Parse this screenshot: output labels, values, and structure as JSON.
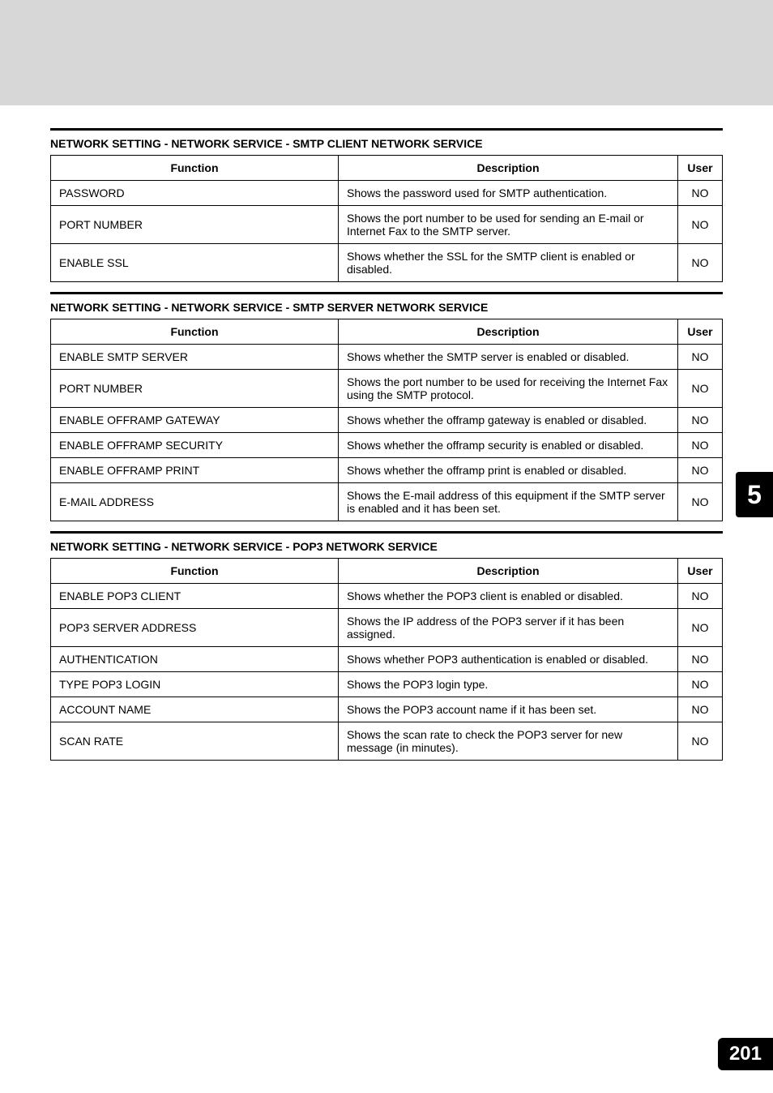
{
  "page": {
    "side_tab": "5",
    "page_number": "201"
  },
  "sections": [
    {
      "heading": "NETWORK SETTING - NETWORK SERVICE - SMTP CLIENT NETWORK SERVICE",
      "columns": {
        "fn": "Function",
        "desc": "Description",
        "user": "User"
      },
      "rows": [
        {
          "fn": "PASSWORD",
          "desc": "Shows the password used for SMTP authentication.",
          "user": "NO"
        },
        {
          "fn": "PORT NUMBER",
          "desc": "Shows the port number to be used for sending an E-mail or Internet Fax to the SMTP server.",
          "user": "NO"
        },
        {
          "fn": "ENABLE SSL",
          "desc": "Shows whether the SSL for the SMTP client is enabled or disabled.",
          "user": "NO"
        }
      ]
    },
    {
      "heading": "NETWORK SETTING - NETWORK SERVICE - SMTP SERVER NETWORK SERVICE",
      "columns": {
        "fn": "Function",
        "desc": "Description",
        "user": "User"
      },
      "rows": [
        {
          "fn": "ENABLE SMTP SERVER",
          "desc": "Shows whether the SMTP server is enabled or disabled.",
          "user": "NO"
        },
        {
          "fn": "PORT NUMBER",
          "desc": "Shows the port number to be used for receiving the Internet Fax using the SMTP protocol.",
          "user": "NO"
        },
        {
          "fn": "ENABLE OFFRAMP GATEWAY",
          "desc": "Shows whether the offramp gateway is enabled or disabled.",
          "user": "NO"
        },
        {
          "fn": "ENABLE OFFRAMP SECURITY",
          "desc": "Shows whether the offramp security is enabled or disabled.",
          "user": "NO"
        },
        {
          "fn": "ENABLE OFFRAMP PRINT",
          "desc": "Shows whether the offramp print is enabled or disabled.",
          "user": "NO"
        },
        {
          "fn": "E-MAIL ADDRESS",
          "desc": "Shows the E-mail address of this equipment if the SMTP server is enabled and it has been set.",
          "user": "NO"
        }
      ]
    },
    {
      "heading": "NETWORK SETTING - NETWORK SERVICE - POP3 NETWORK SERVICE",
      "columns": {
        "fn": "Function",
        "desc": "Description",
        "user": "User"
      },
      "rows": [
        {
          "fn": "ENABLE POP3 CLIENT",
          "desc": "Shows whether the POP3 client is enabled or disabled.",
          "user": "NO"
        },
        {
          "fn": "POP3 SERVER ADDRESS",
          "desc": "Shows the IP address of the POP3 server if it has been assigned.",
          "user": "NO"
        },
        {
          "fn": "AUTHENTICATION",
          "desc": "Shows whether POP3 authentication is enabled or disabled.",
          "user": "NO"
        },
        {
          "fn": "TYPE POP3 LOGIN",
          "desc": "Shows the POP3 login type.",
          "user": "NO"
        },
        {
          "fn": "ACCOUNT NAME",
          "desc": "Shows the POP3 account name if it has been set.",
          "user": "NO"
        },
        {
          "fn": "SCAN RATE",
          "desc": "Shows the scan rate to check the POP3 server for new message (in minutes).",
          "user": "NO"
        }
      ]
    }
  ]
}
